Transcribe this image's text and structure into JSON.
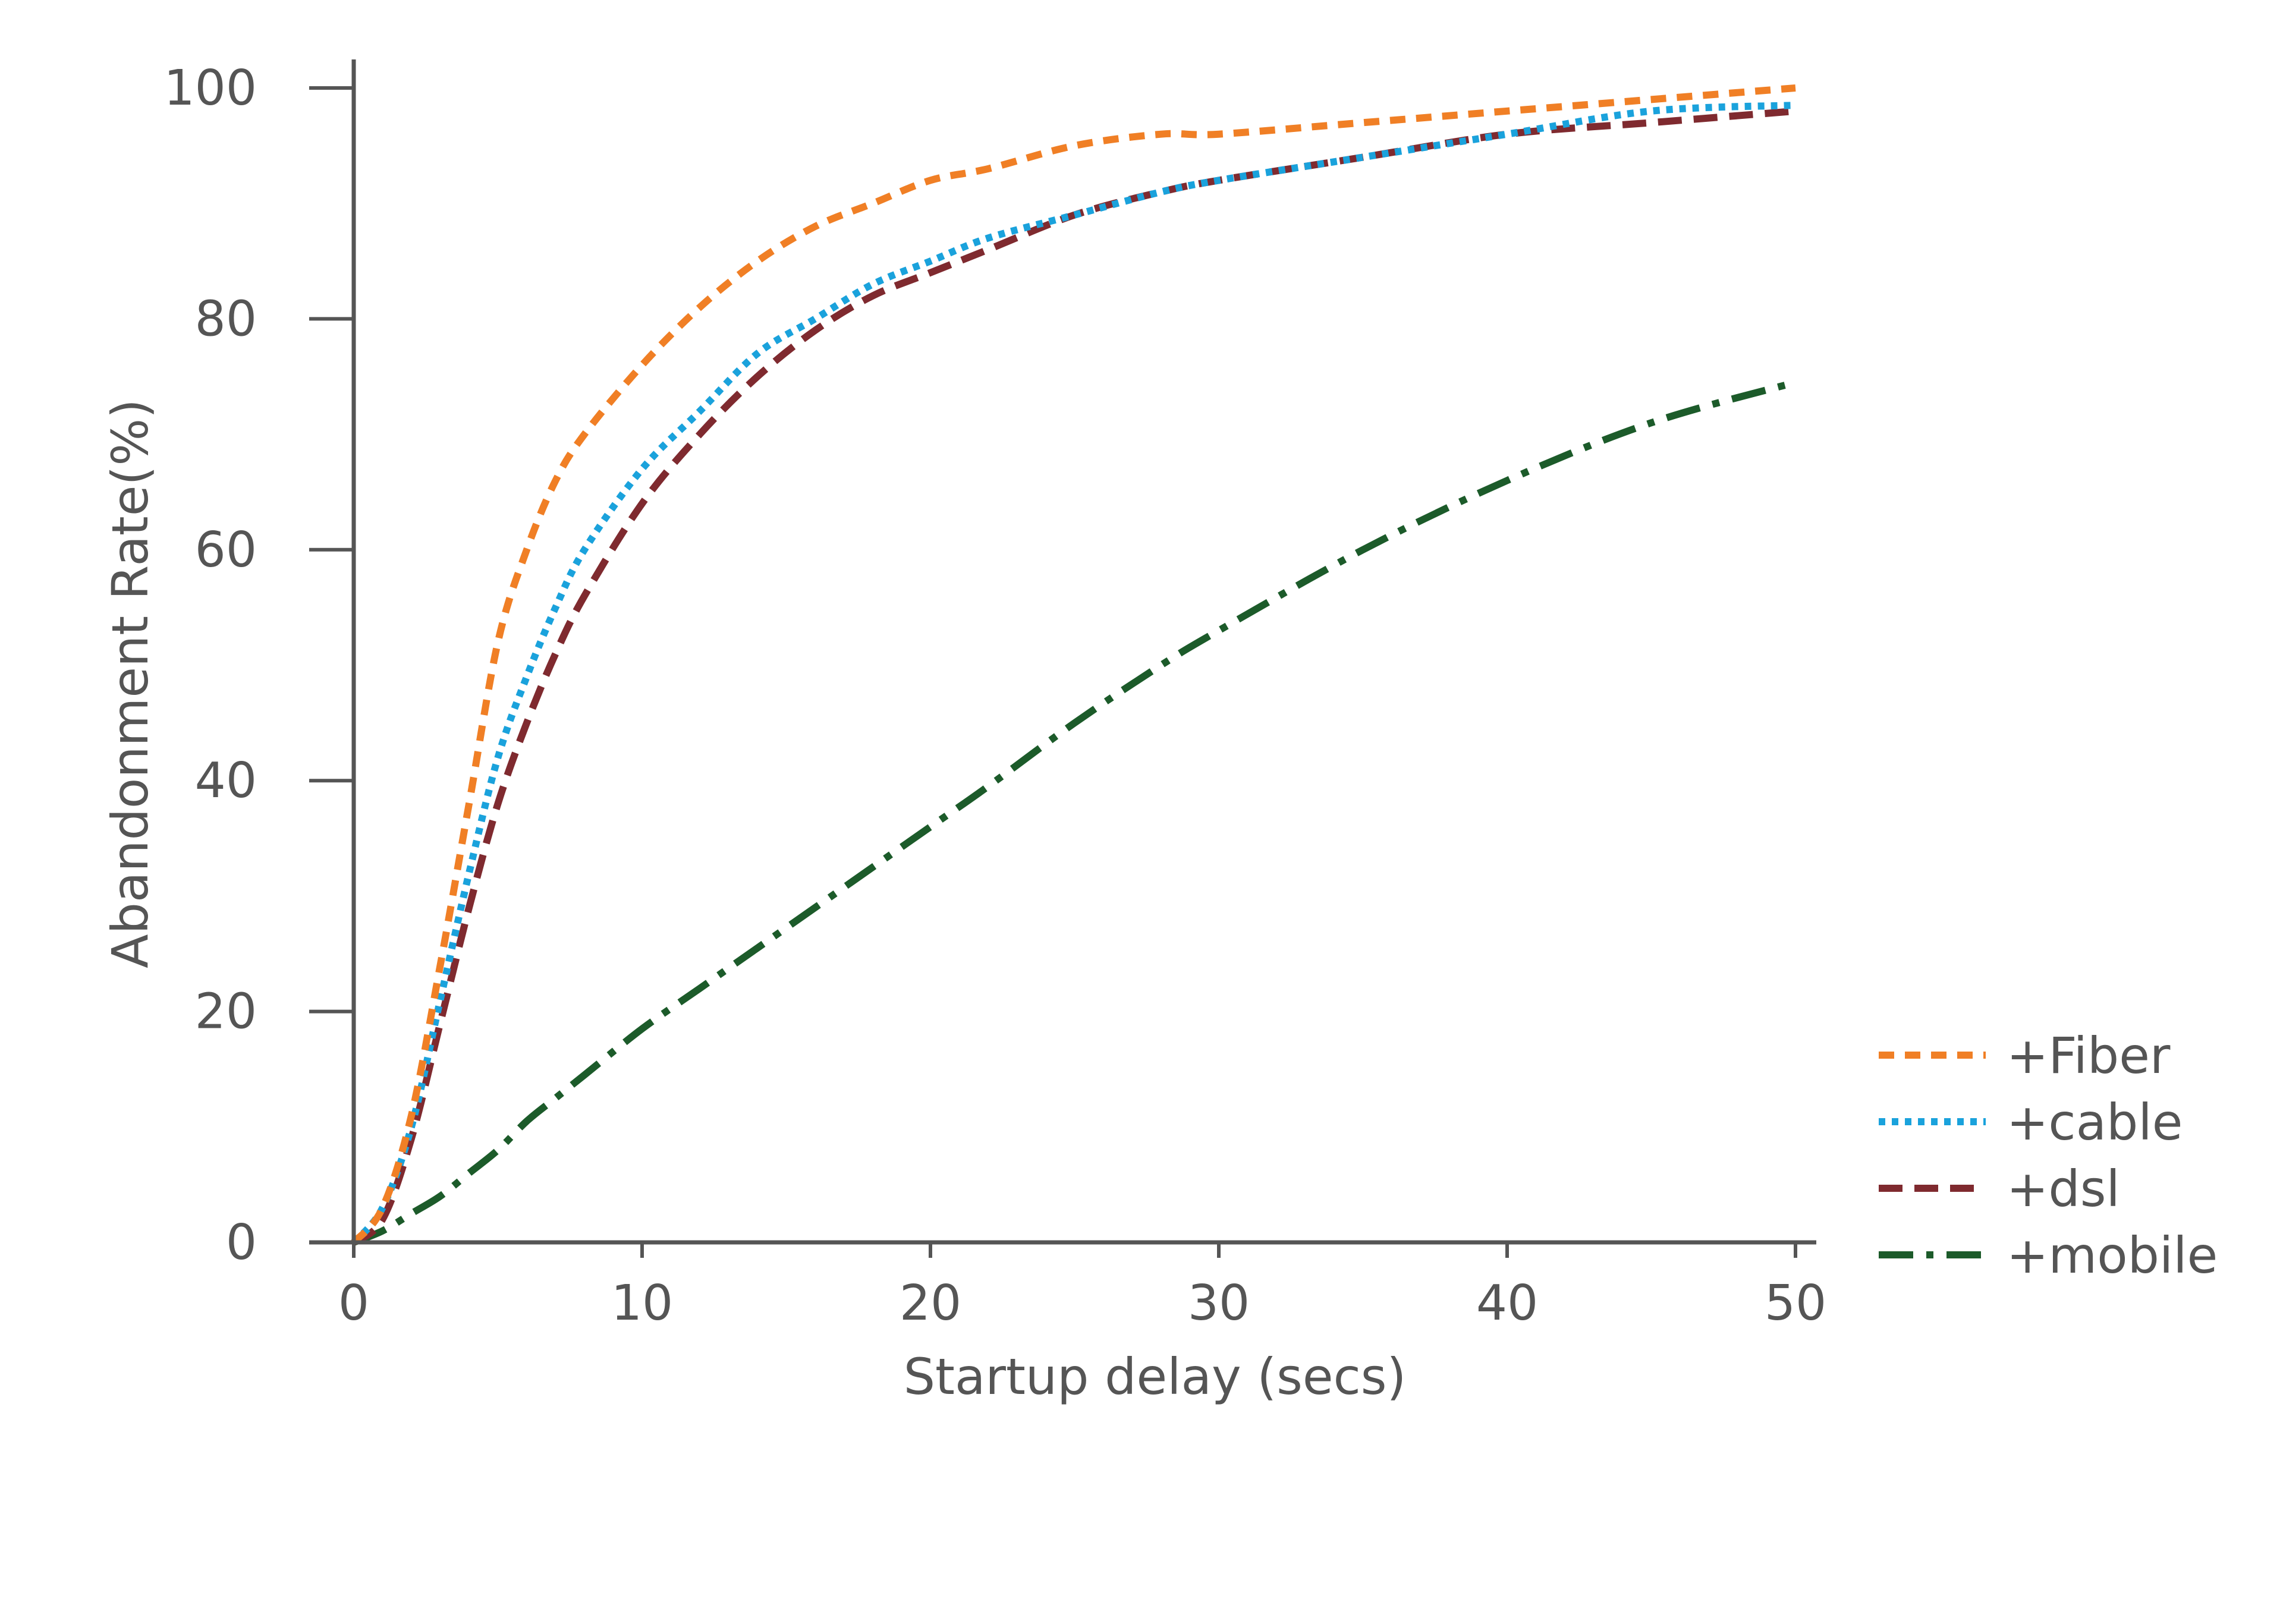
{
  "chart_data": {
    "type": "line",
    "title": "",
    "xlabel": "Startup delay (secs)",
    "ylabel": "Abandonment Rate(%)",
    "xlim": [
      0,
      50
    ],
    "ylim": [
      0,
      100
    ],
    "xticks": [
      "0",
      "10",
      "20",
      "30",
      "40",
      "50"
    ],
    "yticks": [
      "0",
      "20",
      "40",
      "60",
      "80",
      "100"
    ],
    "grid": false,
    "legend_position": "bottom-right",
    "x": [
      0,
      1,
      2,
      3,
      4,
      5,
      6,
      7,
      8,
      10,
      12,
      14,
      16,
      18,
      20,
      22,
      25,
      28,
      30,
      35,
      40,
      45,
      50
    ],
    "series": [
      {
        "name": "+Fiber",
        "color": "#f07f25",
        "dash": "orange-dashed",
        "values": [
          0,
          3,
          11,
          24,
          38,
          52,
          60,
          66,
          70,
          76,
          81,
          85,
          88,
          90,
          92,
          93,
          95,
          96,
          96,
          97,
          98,
          99,
          100
        ]
      },
      {
        "name": "+cable",
        "color": "#1aa2dc",
        "dash": "dotted",
        "values": [
          0,
          3,
          10,
          21,
          32,
          42,
          49,
          55,
          60,
          67,
          72,
          77,
          80,
          83,
          85,
          87,
          89,
          91,
          92,
          94,
          96,
          98,
          98.5
        ]
      },
      {
        "name": "+dsl",
        "color": "#7f2a2f",
        "dash": "dashed",
        "values": [
          0,
          2,
          9,
          19,
          29,
          38,
          45,
          51,
          56,
          64,
          70,
          75,
          79,
          82,
          84,
          86,
          89,
          91,
          92,
          94,
          96,
          97,
          98
        ]
      },
      {
        "name": "+mobile",
        "color": "#1c5b2a",
        "dash": "dash-dot",
        "values": [
          0,
          1,
          2.5,
          4,
          6,
          8,
          10.5,
          12.5,
          14.5,
          18.5,
          22,
          25.5,
          29,
          32.5,
          36,
          39.5,
          45,
          50,
          53,
          60,
          66,
          71,
          74.5
        ]
      }
    ]
  }
}
